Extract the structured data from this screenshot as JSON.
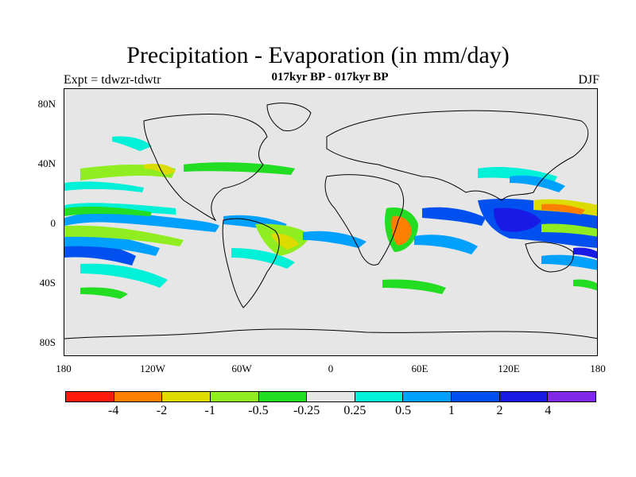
{
  "header": {
    "title": "Precipitation - Evaporation (in mm/day)",
    "subtitle": "017kyr BP - 017kyr BP",
    "experiment": "Expt = tdwzr-tdwtr",
    "season": "DJF"
  },
  "axes": {
    "lat_ticks": [
      "80N",
      "40N",
      "0",
      "40S",
      "80S"
    ],
    "lon_ticks": [
      "180",
      "120W",
      "60W",
      "0",
      "60E",
      "120E",
      "180"
    ]
  },
  "colorbar": {
    "colors": [
      "#ff1a0a",
      "#ff8000",
      "#dcdc00",
      "#90ee20",
      "#22dd22",
      "#e6e6e6",
      "#00f0d8",
      "#00a0ff",
      "#0050f0",
      "#1a1ae6",
      "#8028e6"
    ],
    "labels": [
      "-4",
      "-2",
      "-1",
      "-0.5",
      "-0.25",
      "0.25",
      "0.5",
      "1",
      "2",
      "4"
    ]
  },
  "map": {
    "background_color": "#e6e6e6",
    "coastline_color": "#000000"
  }
}
